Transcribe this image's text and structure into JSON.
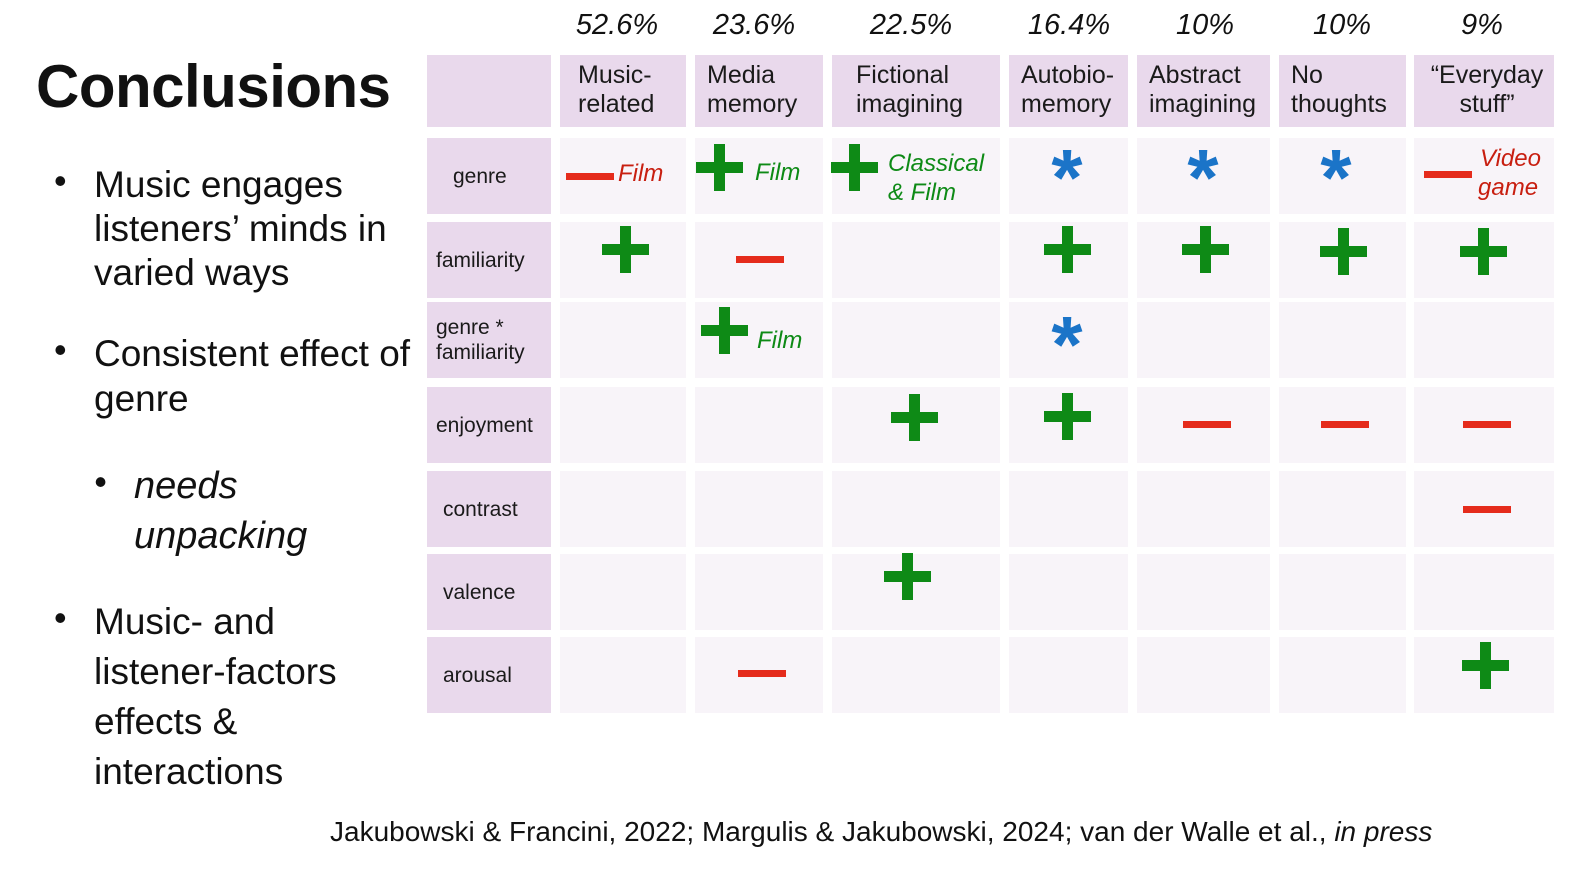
{
  "title": "Conclusions",
  "bullets": {
    "b1": "Music engages listeners’ minds in varied ways",
    "b2": "Consistent effect of genre",
    "b3": "needs unpacking",
    "b4": "Music- and listener-factors effects & interactions"
  },
  "table": {
    "percentages": [
      "52.6%",
      "23.6%",
      "22.5%",
      "16.4%",
      "10%",
      "10%",
      "9%"
    ],
    "columns": [
      "Music-related",
      "Media memory",
      "Fictional imagining",
      "Autobio-memory",
      "Abstract imagining",
      "No thoughts",
      "“Everyday stuff”"
    ],
    "columns_html": [
      "Music-\nrelated",
      "Media\nmemory",
      "Fictional\nimagining",
      "Autobio-\nmemory",
      "Abstract\nimagining",
      "No\nthoughts",
      "“Everyday\nstuff”"
    ],
    "rows": [
      "genre",
      "familiarity",
      "genre * familiarity",
      "enjoyment",
      "contrast",
      "valence",
      "arousal"
    ],
    "rows_html": [
      "genre",
      "familiarity",
      "genre *\nfamiliarity",
      "enjoyment",
      "contrast",
      "valence",
      "arousal"
    ],
    "effects": [
      [
        "minus",
        "plus",
        "plus",
        "star",
        "star",
        "star",
        "minus"
      ],
      [
        "plus",
        "minus",
        "",
        "plus",
        "plus",
        "plus",
        "plus"
      ],
      [
        "",
        "plus",
        "",
        "star",
        "",
        "",
        ""
      ],
      [
        "",
        "",
        "plus",
        "plus",
        "minus",
        "minus",
        "minus"
      ],
      [
        "",
        "",
        "",
        "",
        "",
        "",
        "minus"
      ],
      [
        "",
        "",
        "plus",
        "",
        "",
        "",
        ""
      ],
      [
        "",
        "minus",
        "",
        "",
        "",
        "",
        "plus"
      ]
    ],
    "annotations": {
      "genre_music": "Film",
      "genre_media": "Film",
      "genre_fictional_1": "Classical",
      "genre_fictional_2": "& Film",
      "genre_everyday_1": "Video",
      "genre_everyday_2": "game",
      "interaction_media": "Film"
    }
  },
  "legend_icons": {
    "plus": "plus-icon",
    "minus": "minus-icon",
    "star": "asterisk-icon"
  },
  "colors": {
    "header_bg": "#e9d9ec",
    "cell_bg": "#f8f4f9",
    "positive": "#0e8a16",
    "negative": "#e52b1c",
    "interaction": "#1b74c8"
  },
  "citation": {
    "main": "Jakubowski & Francini, 2022; Margulis & Jakubowski, 2024; van der Walle et al., ",
    "italic": "in press"
  }
}
